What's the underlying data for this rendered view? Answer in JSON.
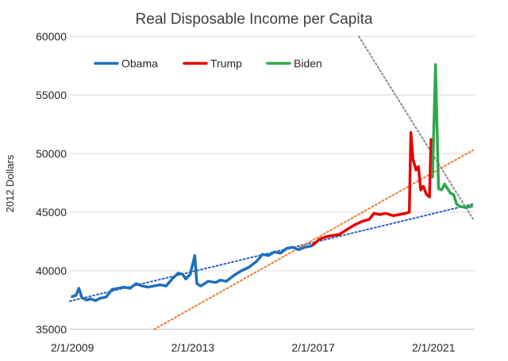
{
  "chart_data": {
    "type": "line",
    "title": "Real Disposable Income per Capita",
    "ylabel": "2012 Dollars",
    "xlabel": "",
    "xlim": [
      2009.0,
      2022.45
    ],
    "ylim": [
      35000,
      60000
    ],
    "y_ticks": [
      35000,
      40000,
      45000,
      50000,
      55000,
      60000
    ],
    "x_ticks": [
      {
        "value": 2009.085,
        "label": "2/1/2009"
      },
      {
        "value": 2013.085,
        "label": "2/1/2013"
      },
      {
        "value": 2017.085,
        "label": "2/1/2017"
      },
      {
        "value": 2021.085,
        "label": "2/1/2021"
      }
    ],
    "grid": "horizontal",
    "legend_position": "top-left",
    "series": [
      {
        "name": "Obama",
        "color": "#1f6fb8",
        "points": [
          [
            2009.08,
            37800
          ],
          [
            2009.2,
            37900
          ],
          [
            2009.3,
            38500
          ],
          [
            2009.4,
            37700
          ],
          [
            2009.55,
            37500
          ],
          [
            2009.7,
            37600
          ],
          [
            2009.85,
            37450
          ],
          [
            2010.0,
            37650
          ],
          [
            2010.2,
            37750
          ],
          [
            2010.4,
            38400
          ],
          [
            2010.6,
            38500
          ],
          [
            2010.8,
            38600
          ],
          [
            2011.0,
            38500
          ],
          [
            2011.2,
            38900
          ],
          [
            2011.4,
            38700
          ],
          [
            2011.6,
            38600
          ],
          [
            2011.8,
            38700
          ],
          [
            2012.0,
            38800
          ],
          [
            2012.2,
            38700
          ],
          [
            2012.4,
            39300
          ],
          [
            2012.6,
            39800
          ],
          [
            2012.75,
            39700
          ],
          [
            2012.85,
            39300
          ],
          [
            2013.0,
            39700
          ],
          [
            2013.15,
            41300
          ],
          [
            2013.22,
            38900
          ],
          [
            2013.35,
            38700
          ],
          [
            2013.6,
            39100
          ],
          [
            2013.85,
            39000
          ],
          [
            2014.0,
            39200
          ],
          [
            2014.2,
            39100
          ],
          [
            2014.45,
            39600
          ],
          [
            2014.7,
            40000
          ],
          [
            2014.95,
            40300
          ],
          [
            2015.2,
            40800
          ],
          [
            2015.4,
            41400
          ],
          [
            2015.6,
            41300
          ],
          [
            2015.8,
            41600
          ],
          [
            2016.0,
            41500
          ],
          [
            2016.2,
            41900
          ],
          [
            2016.4,
            42000
          ],
          [
            2016.6,
            41800
          ],
          [
            2016.8,
            42000
          ],
          [
            2017.0,
            42100
          ],
          [
            2017.08,
            42200
          ]
        ]
      },
      {
        "name": "Trump",
        "color": "#e60000",
        "points": [
          [
            2017.08,
            42200
          ],
          [
            2017.3,
            42700
          ],
          [
            2017.5,
            42900
          ],
          [
            2017.7,
            43000
          ],
          [
            2017.95,
            43100
          ],
          [
            2018.2,
            43500
          ],
          [
            2018.45,
            43900
          ],
          [
            2018.7,
            44200
          ],
          [
            2018.95,
            44400
          ],
          [
            2019.1,
            44900
          ],
          [
            2019.3,
            44800
          ],
          [
            2019.5,
            44900
          ],
          [
            2019.75,
            44700
          ],
          [
            2019.95,
            44800
          ],
          [
            2020.15,
            44900
          ],
          [
            2020.28,
            45000
          ],
          [
            2020.33,
            51800
          ],
          [
            2020.4,
            49500
          ],
          [
            2020.5,
            48600
          ],
          [
            2020.58,
            48900
          ],
          [
            2020.66,
            46900
          ],
          [
            2020.75,
            47200
          ],
          [
            2020.85,
            46500
          ],
          [
            2020.95,
            46300
          ],
          [
            2021.0,
            51200
          ],
          [
            2021.05,
            48000
          ]
        ]
      },
      {
        "name": "Biden",
        "color": "#2ea84a",
        "points": [
          [
            2021.05,
            48000
          ],
          [
            2021.15,
            57600
          ],
          [
            2021.25,
            47000
          ],
          [
            2021.35,
            46900
          ],
          [
            2021.45,
            47400
          ],
          [
            2021.55,
            47000
          ],
          [
            2021.65,
            46600
          ],
          [
            2021.75,
            46500
          ],
          [
            2021.85,
            45700
          ],
          [
            2021.95,
            45500
          ],
          [
            2022.15,
            45400
          ],
          [
            2022.35,
            45500
          ]
        ]
      }
    ],
    "trendlines": [
      {
        "color": "#2f5fc4",
        "style": "dotted",
        "from": [
          2009.0,
          37400
        ],
        "to": [
          2022.4,
          45700
        ]
      },
      {
        "color": "#ed7d31",
        "style": "dotted",
        "from": [
          2011.8,
          35000
        ],
        "to": [
          2022.4,
          50300
        ]
      },
      {
        "color": "#8c8c8c",
        "style": "dotted",
        "from": [
          2018.6,
          60000
        ],
        "to": [
          2022.4,
          44400
        ]
      }
    ]
  }
}
